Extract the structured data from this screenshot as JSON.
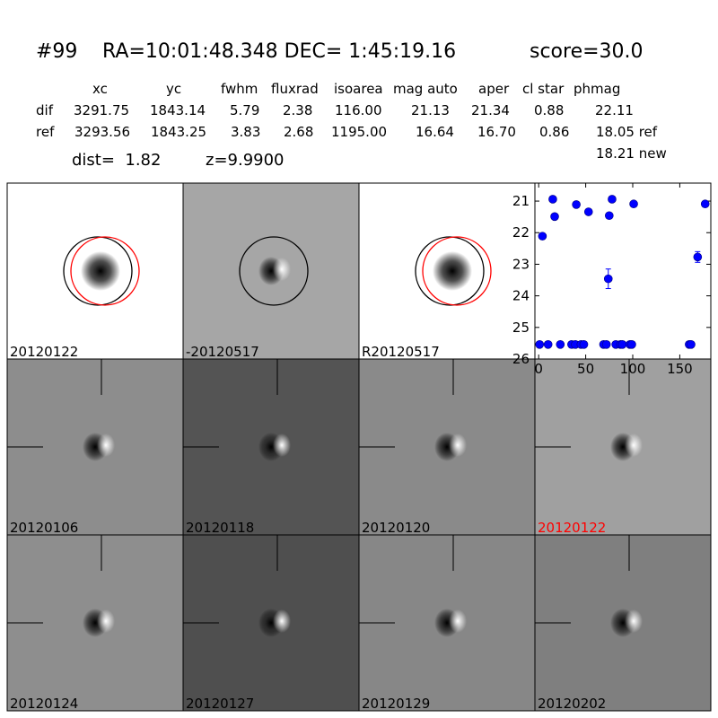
{
  "header": {
    "id": "#99",
    "coords": "RA=10:01:48.348 DEC= 1:45:19.16",
    "score": "score=30.0"
  },
  "table": {
    "columns": [
      "xc",
      "yc",
      "fwhm",
      "fluxrad",
      "isoarea",
      "mag auto",
      "aper",
      "cl star",
      "phmag"
    ],
    "rows": [
      [
        "dif",
        "3291.75",
        "1843.14",
        "5.79",
        "2.38",
        "116.00",
        "21.13",
        "21.34",
        "0.88",
        "22.11"
      ],
      [
        "ref",
        "3293.56",
        "1843.25",
        "3.83",
        "2.68",
        "1195.00",
        "16.64",
        "16.70",
        "0.86",
        "18.05 ref"
      ]
    ],
    "extra": "18.21 new"
  },
  "dist": "dist=  1.82",
  "z": "z=9.9900",
  "stamps": [
    {
      "label": "20120122"
    },
    {
      "label": "-20120517"
    },
    {
      "label": "R20120517"
    },
    {
      "label": "20120106"
    },
    {
      "label": "20120118"
    },
    {
      "label": "20120120"
    },
    {
      "label": "20120122",
      "label_color": "#ff0000"
    },
    {
      "label": "20120124"
    },
    {
      "label": "20120127"
    },
    {
      "label": "20120129"
    },
    {
      "label": "20120202"
    }
  ],
  "chart_data": {
    "type": "scatter",
    "color": "#0000ff",
    "xlim": [
      -4,
      183
    ],
    "ylim": [
      26,
      20.43
    ],
    "xticks": [
      0,
      50,
      100,
      150
    ],
    "yticks": [
      21,
      22,
      23,
      24,
      25,
      26
    ],
    "series": [
      {
        "x": [
          4,
          15,
          17,
          40,
          53,
          74,
          75,
          78,
          101,
          169,
          177,
          1,
          10,
          23,
          35,
          39,
          45,
          48,
          69,
          72,
          82,
          87,
          89,
          97,
          99,
          160,
          162
        ],
        "values": [
          22.11,
          20.94,
          21.49,
          21.11,
          21.34,
          23.46,
          21.46,
          20.94,
          21.09,
          22.77,
          21.09,
          25.54,
          25.54,
          25.54,
          25.54,
          25.54,
          25.54,
          25.54,
          25.54,
          25.54,
          25.54,
          25.54,
          25.54,
          25.54,
          25.54,
          25.54,
          25.54
        ],
        "errors": [
          null,
          null,
          null,
          null,
          null,
          0.31,
          null,
          null,
          null,
          0.17,
          null,
          null,
          null,
          null,
          null,
          null,
          null,
          null,
          null,
          null,
          null,
          null,
          null,
          null,
          null,
          null,
          null
        ]
      }
    ]
  }
}
